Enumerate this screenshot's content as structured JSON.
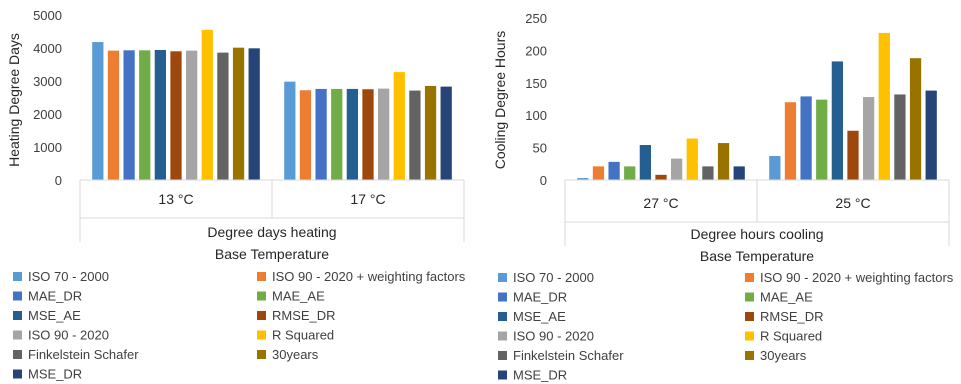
{
  "colors": {
    "ISO 70 - 2000": "#5b9bd5",
    "ISO 90 - 2020 + weighting factors": "#ed7d31",
    "MAE_DR": "#4472c4",
    "MAE_AE": "#70ad47",
    "MSE_AE": "#255e91",
    "RMSE_DR": "#9e480e",
    "ISO 90 - 2020": "#a5a5a5",
    "R Squared": "#ffc000",
    "Finkelstein Schafer": "#636363",
    "30years": "#997300",
    "MSE_DR": "#264478"
  },
  "chart_data": [
    {
      "type": "bar",
      "ylabel": "Heating Degree Days",
      "group_label": "Degree days heating",
      "xlabel": "Base Temperature",
      "yticks": [
        "0",
        "1000",
        "2000",
        "3000",
        "4000",
        "5000"
      ],
      "ylim": [
        0,
        5000
      ],
      "categories": [
        "13 °C",
        "17 °C"
      ],
      "legend_position": "bottom",
      "series": [
        {
          "name": "ISO 70 - 2000",
          "values": [
            4180,
            2980
          ]
        },
        {
          "name": "ISO 90 - 2020 + weighting factors",
          "values": [
            3920,
            2720
          ]
        },
        {
          "name": "MAE_DR",
          "values": [
            3930,
            2760
          ]
        },
        {
          "name": "MAE_AE",
          "values": [
            3930,
            2760
          ]
        },
        {
          "name": "MSE_AE",
          "values": [
            3940,
            2760
          ]
        },
        {
          "name": "RMSE_DR",
          "values": [
            3900,
            2750
          ]
        },
        {
          "name": "ISO 90 - 2020",
          "values": [
            3920,
            2770
          ]
        },
        {
          "name": "R Squared",
          "values": [
            4550,
            3270
          ]
        },
        {
          "name": "Finkelstein Schafer",
          "values": [
            3860,
            2710
          ]
        },
        {
          "name": "30years",
          "values": [
            4010,
            2850
          ]
        },
        {
          "name": "MSE_DR",
          "values": [
            3990,
            2830
          ]
        }
      ]
    },
    {
      "type": "bar",
      "ylabel": "Cooling Degree Hours",
      "group_label": "Degree hours cooling",
      "xlabel": "Base Temperature",
      "yticks": [
        "0",
        "50",
        "100",
        "150",
        "200",
        "250"
      ],
      "ylim": [
        0,
        250
      ],
      "categories": [
        "27 °C",
        "25 °C"
      ],
      "legend_position": "bottom",
      "series": [
        {
          "name": "ISO 70 - 2000",
          "values": [
            3,
            37
          ]
        },
        {
          "name": "ISO 90 - 2020 + weighting factors",
          "values": [
            21,
            120
          ]
        },
        {
          "name": "MAE_DR",
          "values": [
            28,
            129
          ]
        },
        {
          "name": "MAE_AE",
          "values": [
            21,
            124
          ]
        },
        {
          "name": "MSE_AE",
          "values": [
            54,
            183
          ]
        },
        {
          "name": "RMSE_DR",
          "values": [
            8,
            76
          ]
        },
        {
          "name": "ISO 90 - 2020",
          "values": [
            33,
            128
          ]
        },
        {
          "name": "R Squared",
          "values": [
            64,
            227
          ]
        },
        {
          "name": "Finkelstein Schafer",
          "values": [
            21,
            132
          ]
        },
        {
          "name": "30years",
          "values": [
            57,
            188
          ]
        },
        {
          "name": "MSE_DR",
          "values": [
            21,
            138
          ]
        }
      ]
    }
  ]
}
